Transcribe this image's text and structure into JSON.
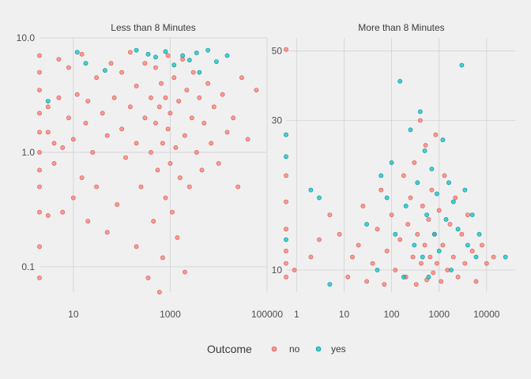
{
  "chart_data": [
    {
      "type": "scatter",
      "title": "Less than 8 Minutes",
      "x_scale": "log10",
      "y_scale": "log10",
      "xlim": [
        2,
        100000
      ],
      "ylim": [
        0.06,
        10
      ],
      "x_ticks": [
        10,
        1000,
        100000
      ],
      "x_tick_labels": [
        "10",
        "1000",
        "100000"
      ],
      "y_ticks": [
        0.1,
        1,
        10
      ],
      "y_tick_labels": [
        "0.1",
        "1.0",
        "10.0"
      ],
      "grid": true,
      "series": [
        {
          "name": "no",
          "points": [
            [
              2,
              0.08
            ],
            [
              2,
              0.15
            ],
            [
              2,
              0.3
            ],
            [
              2,
              0.5
            ],
            [
              2,
              0.7
            ],
            [
              2,
              1.0
            ],
            [
              2,
              1.5
            ],
            [
              2,
              2.2
            ],
            [
              2,
              3.5
            ],
            [
              2,
              5.0
            ],
            [
              2,
              7.0
            ],
            [
              3,
              0.28
            ],
            [
              3,
              1.5
            ],
            [
              3,
              2.5
            ],
            [
              4,
              0.8
            ],
            [
              4,
              1.2
            ],
            [
              5,
              3.0
            ],
            [
              5,
              6.5
            ],
            [
              6,
              0.3
            ],
            [
              6,
              1.1
            ],
            [
              8,
              2.0
            ],
            [
              8,
              5.5
            ],
            [
              10,
              0.4
            ],
            [
              10,
              1.3
            ],
            [
              12,
              3.2
            ],
            [
              15,
              0.6
            ],
            [
              15,
              7.2
            ],
            [
              18,
              1.8
            ],
            [
              20,
              0.25
            ],
            [
              20,
              2.8
            ],
            [
              25,
              1.0
            ],
            [
              30,
              4.5
            ],
            [
              30,
              0.5
            ],
            [
              40,
              2.2
            ],
            [
              50,
              0.2
            ],
            [
              50,
              1.4
            ],
            [
              60,
              6.0
            ],
            [
              70,
              3.0
            ],
            [
              80,
              0.35
            ],
            [
              100,
              1.6
            ],
            [
              100,
              5.0
            ],
            [
              120,
              0.9
            ],
            [
              150,
              2.5
            ],
            [
              150,
              7.5
            ],
            [
              200,
              0.15
            ],
            [
              200,
              1.2
            ],
            [
              200,
              3.8
            ],
            [
              250,
              0.5
            ],
            [
              300,
              2.0
            ],
            [
              300,
              6.0
            ],
            [
              350,
              0.08
            ],
            [
              400,
              1.0
            ],
            [
              400,
              3.0
            ],
            [
              450,
              0.25
            ],
            [
              500,
              1.8
            ],
            [
              500,
              5.5
            ],
            [
              550,
              0.7
            ],
            [
              600,
              2.5
            ],
            [
              600,
              0.06
            ],
            [
              650,
              4.0
            ],
            [
              700,
              1.2
            ],
            [
              700,
              0.12
            ],
            [
              800,
              3.0
            ],
            [
              800,
              0.4
            ],
            [
              900,
              1.6
            ],
            [
              900,
              7.0
            ],
            [
              1000,
              0.8
            ],
            [
              1000,
              2.2
            ],
            [
              1100,
              0.3
            ],
            [
              1200,
              4.5
            ],
            [
              1300,
              1.1
            ],
            [
              1400,
              0.18
            ],
            [
              1500,
              2.8
            ],
            [
              1600,
              0.6
            ],
            [
              1800,
              6.5
            ],
            [
              2000,
              1.4
            ],
            [
              2000,
              0.09
            ],
            [
              2200,
              3.5
            ],
            [
              2500,
              0.5
            ],
            [
              2800,
              2.0
            ],
            [
              3000,
              5.0
            ],
            [
              3500,
              1.0
            ],
            [
              4000,
              3.0
            ],
            [
              4500,
              0.7
            ],
            [
              5000,
              1.8
            ],
            [
              6000,
              4.0
            ],
            [
              7000,
              1.2
            ],
            [
              8000,
              2.5
            ],
            [
              10000,
              0.8
            ],
            [
              12000,
              3.2
            ],
            [
              15000,
              1.5
            ],
            [
              20000,
              2.0
            ],
            [
              25000,
              0.5
            ],
            [
              30000,
              4.5
            ],
            [
              40000,
              1.3
            ],
            [
              60000,
              3.5
            ]
          ]
        },
        {
          "name": "yes",
          "points": [
            [
              3,
              2.8
            ],
            [
              12,
              7.5
            ],
            [
              18,
              6.0
            ],
            [
              45,
              5.2
            ],
            [
              200,
              7.8
            ],
            [
              350,
              7.2
            ],
            [
              500,
              6.8
            ],
            [
              800,
              7.6
            ],
            [
              1200,
              5.8
            ],
            [
              1800,
              7.0
            ],
            [
              2500,
              6.4
            ],
            [
              3500,
              7.4
            ],
            [
              4000,
              5.0
            ],
            [
              6000,
              7.8
            ],
            [
              9000,
              6.2
            ],
            [
              15000,
              7.0
            ]
          ]
        }
      ]
    },
    {
      "type": "scatter",
      "title": "More than 8 Minutes",
      "x_scale": "log10",
      "y_scale": "log10",
      "xlim": [
        0.6,
        40000
      ],
      "ylim": [
        8.5,
        55
      ],
      "x_ticks": [
        1,
        10,
        100,
        1000,
        10000
      ],
      "x_tick_labels": [
        "1",
        "10",
        "100",
        "1000",
        "10000"
      ],
      "y_ticks": [
        10,
        30,
        50
      ],
      "y_tick_labels": [
        "10",
        "30",
        "50"
      ],
      "grid": true,
      "series": [
        {
          "name": "no",
          "points": [
            [
              0.6,
              9.5
            ],
            [
              0.6,
              10.5
            ],
            [
              0.6,
              11.5
            ],
            [
              0.6,
              13.5
            ],
            [
              0.6,
              16.5
            ],
            [
              0.6,
              20.0
            ],
            [
              0.6,
              50.5
            ],
            [
              0.9,
              10.0
            ],
            [
              2,
              11.0
            ],
            [
              3,
              12.5
            ],
            [
              5,
              15.0
            ],
            [
              8,
              13.0
            ],
            [
              12,
              9.5
            ],
            [
              15,
              11.0
            ],
            [
              20,
              12.0
            ],
            [
              25,
              16.0
            ],
            [
              30,
              9.2
            ],
            [
              40,
              10.5
            ],
            [
              50,
              13.5
            ],
            [
              60,
              18.0
            ],
            [
              70,
              9.0
            ],
            [
              80,
              11.5
            ],
            [
              100,
              15.0
            ],
            [
              120,
              10.0
            ],
            [
              150,
              12.5
            ],
            [
              180,
              20.0
            ],
            [
              200,
              9.5
            ],
            [
              220,
              14.0
            ],
            [
              250,
              17.0
            ],
            [
              280,
              11.0
            ],
            [
              300,
              22.0
            ],
            [
              330,
              9.0
            ],
            [
              350,
              13.0
            ],
            [
              400,
              30.0
            ],
            [
              420,
              10.5
            ],
            [
              450,
              16.0
            ],
            [
              500,
              12.0
            ],
            [
              520,
              25.0
            ],
            [
              550,
              9.3
            ],
            [
              600,
              14.5
            ],
            [
              650,
              11.0
            ],
            [
              700,
              18.0
            ],
            [
              750,
              9.8
            ],
            [
              800,
              13.0
            ],
            [
              850,
              27.0
            ],
            [
              900,
              10.5
            ],
            [
              1000,
              15.5
            ],
            [
              1100,
              9.2
            ],
            [
              1200,
              12.0
            ],
            [
              1300,
              20.0
            ],
            [
              1500,
              10.0
            ],
            [
              1700,
              14.0
            ],
            [
              2000,
              11.0
            ],
            [
              2200,
              17.0
            ],
            [
              2500,
              9.5
            ],
            [
              3000,
              13.0
            ],
            [
              3500,
              10.5
            ],
            [
              4000,
              15.0
            ],
            [
              5000,
              11.5
            ],
            [
              6000,
              9.2
            ],
            [
              8000,
              12.0
            ],
            [
              10000,
              10.5
            ],
            [
              14000,
              11.0
            ]
          ]
        },
        {
          "name": "yes",
          "points": [
            [
              0.6,
              12.5
            ],
            [
              0.6,
              23.0
            ],
            [
              0.6,
              27.0
            ],
            [
              2,
              18.0
            ],
            [
              3,
              17.0
            ],
            [
              5,
              9.0
            ],
            [
              30,
              14.0
            ],
            [
              50,
              10.0
            ],
            [
              60,
              20.0
            ],
            [
              80,
              17.0
            ],
            [
              100,
              22.0
            ],
            [
              120,
              13.0
            ],
            [
              150,
              40.0
            ],
            [
              180,
              9.5
            ],
            [
              200,
              16.0
            ],
            [
              250,
              28.0
            ],
            [
              300,
              12.0
            ],
            [
              350,
              19.0
            ],
            [
              400,
              32.0
            ],
            [
              450,
              11.0
            ],
            [
              500,
              24.0
            ],
            [
              550,
              15.0
            ],
            [
              600,
              9.5
            ],
            [
              700,
              21.0
            ],
            [
              800,
              13.0
            ],
            [
              900,
              17.5
            ],
            [
              1000,
              11.5
            ],
            [
              1200,
              26.0
            ],
            [
              1400,
              14.5
            ],
            [
              1600,
              19.0
            ],
            [
              1800,
              10.0
            ],
            [
              2000,
              16.5
            ],
            [
              2500,
              13.5
            ],
            [
              3000,
              45.0
            ],
            [
              3500,
              18.0
            ],
            [
              4000,
              12.0
            ],
            [
              5000,
              15.0
            ],
            [
              6000,
              11.0
            ],
            [
              7000,
              13.0
            ],
            [
              25000,
              11.0
            ]
          ]
        }
      ]
    }
  ],
  "legend": {
    "title": "Outcome",
    "items": [
      {
        "label": "no",
        "color": "#f8766d"
      },
      {
        "label": "yes",
        "color": "#00bfc4"
      }
    ]
  }
}
